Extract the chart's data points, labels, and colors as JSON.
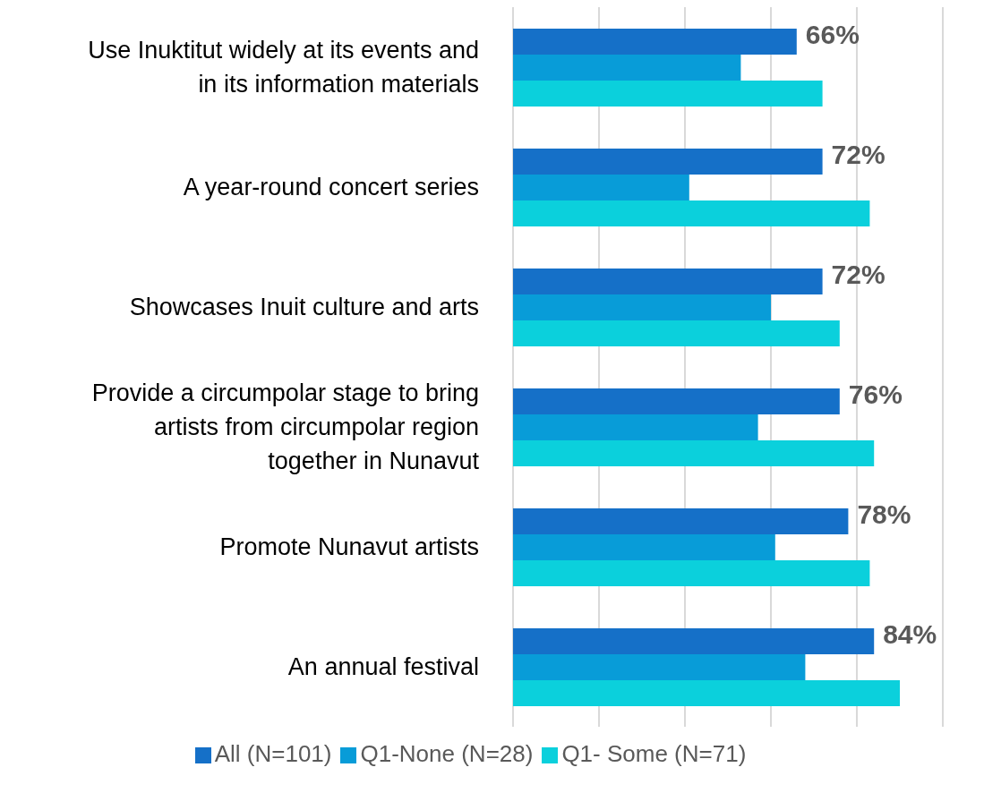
{
  "chart_data": {
    "type": "bar",
    "orientation": "horizontal",
    "categories": [
      "Use Inuktitut widely at its events and in its information materials",
      "A year-round concert series",
      "Showcases Inuit culture and arts",
      "Provide a circumpolar stage to bring artists from circumpolar region together in Nunavut",
      "Promote Nunavut artists",
      "An annual festival"
    ],
    "series": [
      {
        "name": "All (N=101)",
        "color": "#1570c8",
        "values": [
          66,
          72,
          72,
          76,
          78,
          84
        ],
        "value_labels": [
          "66%",
          "72%",
          "72%",
          "76%",
          "78%",
          "84%"
        ]
      },
      {
        "name": "Q1-None (N=28)",
        "color": "#089cd8",
        "values": [
          53,
          41,
          60,
          57,
          61,
          68
        ]
      },
      {
        "name": "Q1- Some (N=71)",
        "color": "#0bd0dc",
        "values": [
          72,
          83,
          76,
          84,
          83,
          90
        ]
      }
    ],
    "xlim": [
      0,
      100
    ],
    "xticks": [
      {
        "value": 0,
        "label": null
      },
      {
        "value": 20,
        "label": null
      },
      {
        "value": 40,
        "label": null
      },
      {
        "value": 60,
        "label": null
      },
      {
        "value": 80,
        "label": null
      },
      {
        "value": 100,
        "label": null
      }
    ],
    "tick_labels": "y",
    "grid": "x",
    "legend": "bottom"
  }
}
